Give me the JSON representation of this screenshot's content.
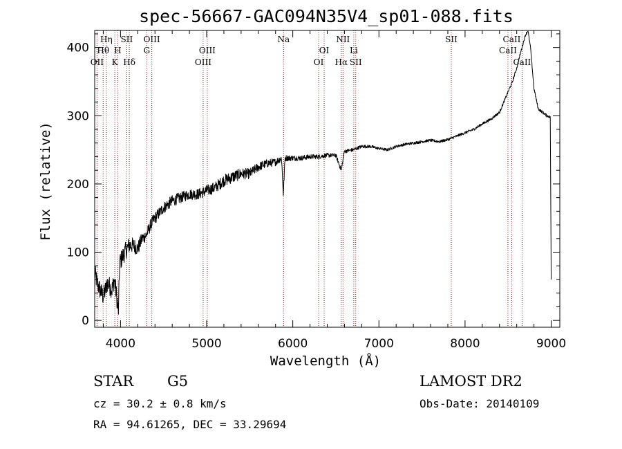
{
  "chart_data": {
    "type": "line",
    "title": "spec-56667-GAC094N35V4_sp01-088.fits",
    "xlabel": "Wavelength (Å)",
    "ylabel": "Flux (relative)",
    "xlim": [
      3700,
      9100
    ],
    "ylim": [
      -10,
      425
    ],
    "xticks": [
      4000,
      5000,
      6000,
      7000,
      8000,
      9000
    ],
    "yticks": [
      0,
      100,
      200,
      300,
      400
    ],
    "grid": false,
    "line_color": "#000000",
    "marker_color": "#8b1a1a",
    "spectrum_anchors": [
      [
        3700,
        70
      ],
      [
        3730,
        55
      ],
      [
        3760,
        45
      ],
      [
        3800,
        35
      ],
      [
        3850,
        55
      ],
      [
        3900,
        45
      ],
      [
        3930,
        60
      ],
      [
        3960,
        30
      ],
      [
        3975,
        10
      ],
      [
        3990,
        85
      ],
      [
        4050,
        100
      ],
      [
        4100,
        110
      ],
      [
        4150,
        110
      ],
      [
        4200,
        105
      ],
      [
        4250,
        120
      ],
      [
        4300,
        125
      ],
      [
        4350,
        140
      ],
      [
        4400,
        150
      ],
      [
        4500,
        165
      ],
      [
        4600,
        175
      ],
      [
        4700,
        180
      ],
      [
        4800,
        185
      ],
      [
        4900,
        185
      ],
      [
        5000,
        190
      ],
      [
        5100,
        195
      ],
      [
        5200,
        205
      ],
      [
        5300,
        210
      ],
      [
        5400,
        215
      ],
      [
        5500,
        215
      ],
      [
        5600,
        225
      ],
      [
        5700,
        230
      ],
      [
        5800,
        232
      ],
      [
        5870,
        238
      ],
      [
        5890,
        185
      ],
      [
        5910,
        238
      ],
      [
        6000,
        238
      ],
      [
        6100,
        238
      ],
      [
        6200,
        240
      ],
      [
        6300,
        240
      ],
      [
        6400,
        242
      ],
      [
        6500,
        242
      ],
      [
        6563,
        220
      ],
      [
        6600,
        248
      ],
      [
        6700,
        250
      ],
      [
        6800,
        255
      ],
      [
        6900,
        255
      ],
      [
        7000,
        252
      ],
      [
        7100,
        250
      ],
      [
        7200,
        255
      ],
      [
        7300,
        258
      ],
      [
        7400,
        260
      ],
      [
        7500,
        262
      ],
      [
        7600,
        264
      ],
      [
        7700,
        262
      ],
      [
        7800,
        265
      ],
      [
        7900,
        270
      ],
      [
        8000,
        275
      ],
      [
        8100,
        280
      ],
      [
        8200,
        288
      ],
      [
        8300,
        295
      ],
      [
        8400,
        305
      ],
      [
        8450,
        320
      ],
      [
        8500,
        335
      ],
      [
        8550,
        350
      ],
      [
        8600,
        370
      ],
      [
        8650,
        395
      ],
      [
        8700,
        418
      ],
      [
        8730,
        425
      ],
      [
        8760,
        400
      ],
      [
        8800,
        340
      ],
      [
        8850,
        310
      ],
      [
        8900,
        305
      ],
      [
        8950,
        300
      ],
      [
        8990,
        298
      ],
      [
        9000,
        60
      ]
    ],
    "noise_amplitude_anchors": [
      [
        3700,
        14
      ],
      [
        4000,
        14
      ],
      [
        4300,
        9
      ],
      [
        4800,
        8
      ],
      [
        5300,
        9
      ],
      [
        5600,
        7
      ],
      [
        6000,
        4
      ],
      [
        6500,
        3
      ],
      [
        7000,
        2
      ],
      [
        8500,
        2
      ],
      [
        9000,
        2
      ]
    ],
    "lines": [
      {
        "name": "Hη",
        "wavelength": 3835,
        "row": 0
      },
      {
        "name": "Hθ",
        "wavelength": 3798,
        "row": 1
      },
      {
        "name": "OII",
        "wavelength": 3727,
        "row": 2
      },
      {
        "name": "SII",
        "wavelength": 4072,
        "row": 0
      },
      {
        "name": "H",
        "wavelength": 3968,
        "row": 1
      },
      {
        "name": "K",
        "wavelength": 3934,
        "row": 2
      },
      {
        "name": "Hδ",
        "wavelength": 4102,
        "row": 2
      },
      {
        "name": "OIII",
        "wavelength": 4363,
        "row": 0
      },
      {
        "name": "G",
        "wavelength": 4305,
        "row": 1
      },
      {
        "name": "OIII",
        "wavelength": 5007,
        "row": 1
      },
      {
        "name": "OIII",
        "wavelength": 4959,
        "row": 2
      },
      {
        "name": "Na",
        "wavelength": 5893,
        "row": 0
      },
      {
        "name": "OI",
        "wavelength": 6364,
        "row": 1
      },
      {
        "name": "OI",
        "wavelength": 6300,
        "row": 2
      },
      {
        "name": "NII",
        "wavelength": 6583,
        "row": 0
      },
      {
        "name": "Hα",
        "wavelength": 6563,
        "row": 2
      },
      {
        "name": "Li",
        "wavelength": 6708,
        "row": 1
      },
      {
        "name": "SII",
        "wavelength": 6731,
        "row": 2
      },
      {
        "name": "SII",
        "wavelength": 7840,
        "row": 0
      },
      {
        "name": "CaII",
        "wavelength": 8542,
        "row": 0
      },
      {
        "name": "CaII",
        "wavelength": 8498,
        "row": 1
      },
      {
        "name": "CaII",
        "wavelength": 8662,
        "row": 2
      }
    ]
  },
  "info": {
    "object_class": "STAR",
    "subclass": "G5",
    "redshift": "cz =  30.2 ± 0.8 km/s",
    "coordinates": "RA =   94.61265, DEC =   33.29694",
    "survey": "LAMOST DR2",
    "obs_date": "Obs-Date: 20140109"
  }
}
